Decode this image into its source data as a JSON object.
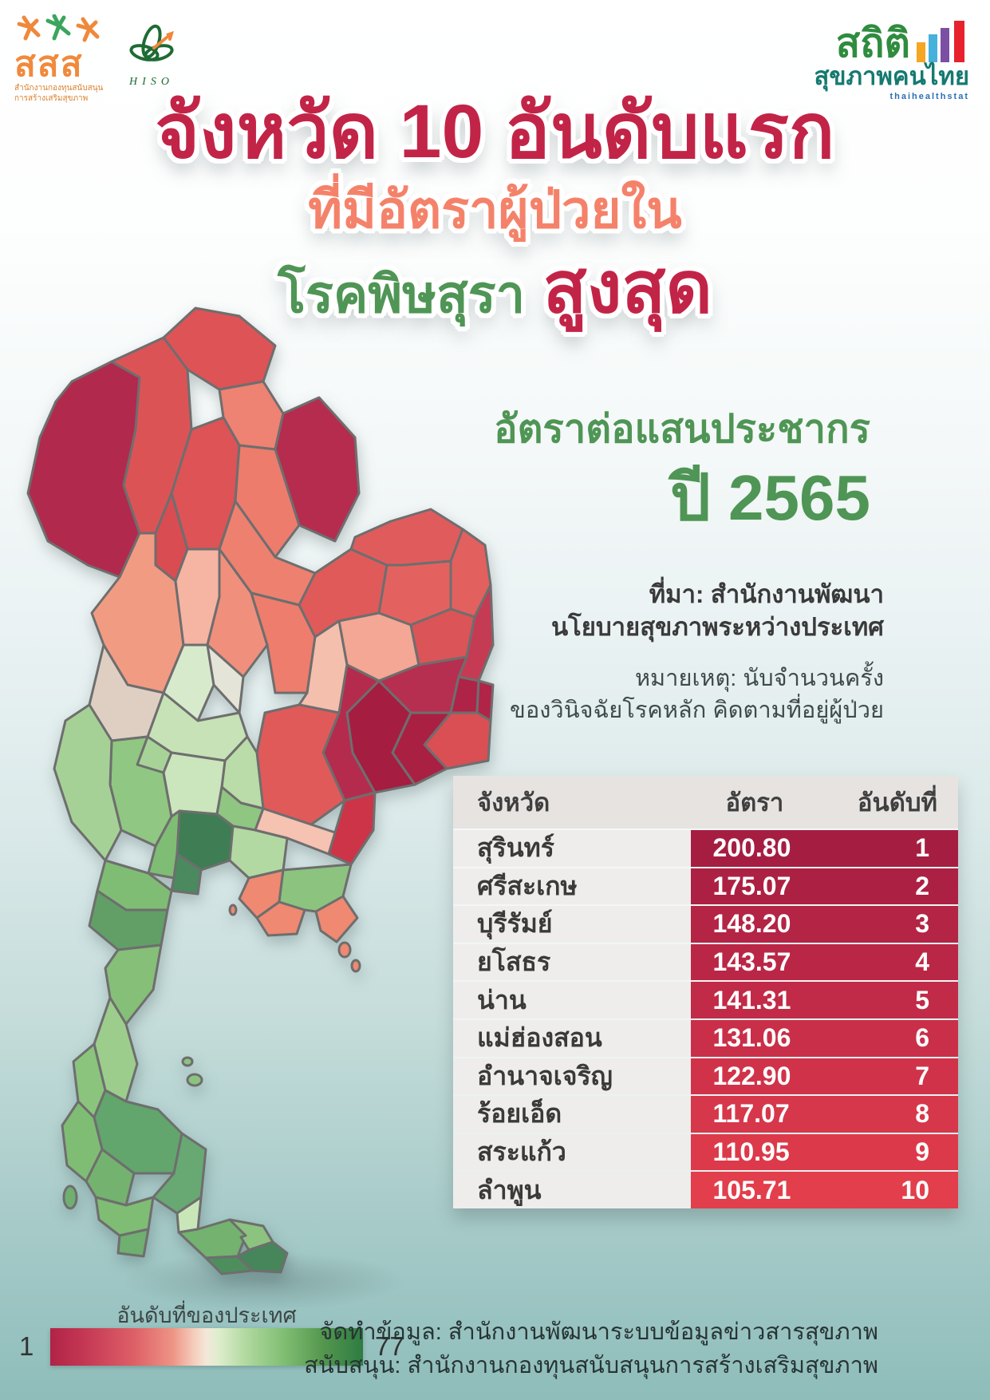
{
  "header": {
    "ssss": {
      "text": "สสส",
      "cap1": "สำนักงานกองทุนสนับสนุน",
      "cap2": "การสร้างเสริมสุขภาพ"
    },
    "hiso": {
      "cap": "HISO"
    },
    "stat": {
      "title": "สถิติ",
      "subtitle": "สุขภาพคนไทย",
      "tagline": "thaihealthstat"
    }
  },
  "title": {
    "line1": "จังหวัด 10 อันดับแรก",
    "line2": "ที่มีอัตราผู้ป่วยใน",
    "line3_green": "โรคพิษสุรา",
    "line3_red": "สูงสุด"
  },
  "panel": {
    "rate_label": "อัตราต่อแสนประชากร",
    "year": "ปี 2565",
    "source_line1": "ที่มา: สำนักงานพัฒนา",
    "source_line2": "นโยบายสุขภาพระหว่างประเทศ",
    "note_line1": "หมายเหตุ: นับจำนวนครั้ง",
    "note_line2": "ของวินิจฉัยโรคหลัก คิดตามที่อยู่ผู้ป่วย"
  },
  "chart_data": {
    "type": "table",
    "title": "จังหวัด 10 อันดับแรกที่มีอัตราผู้ป่วยในโรคพิษสุราสูงสุด ปี 2565",
    "unit": "อัตราต่อแสนประชากร",
    "columns": [
      "จังหวัด",
      "อัตรา",
      "อันดับที่"
    ],
    "rows": [
      {
        "province": "สุรินทร์",
        "rate": "200.80",
        "rank": "1",
        "bg": "#A51E41"
      },
      {
        "province": "ศรีสะเกษ",
        "rate": "175.07",
        "rank": "2",
        "bg": "#AC2143"
      },
      {
        "province": "บุรีรัมย์",
        "rate": "148.20",
        "rank": "3",
        "bg": "#B32445"
      },
      {
        "province": "ยโสธร",
        "rate": "143.57",
        "rank": "4",
        "bg": "#BA2746"
      },
      {
        "province": "น่าน",
        "rate": "141.31",
        "rank": "5",
        "bg": "#C12B47"
      },
      {
        "province": "แม่ฮ่องสอน",
        "rate": "131.06",
        "rank": "6",
        "bg": "#C92F48"
      },
      {
        "province": "อำนาจเจริญ",
        "rate": "122.90",
        "rank": "7",
        "bg": "#D03349"
      },
      {
        "province": "ร้อยเอ็ด",
        "rate": "117.07",
        "rank": "8",
        "bg": "#D6374A"
      },
      {
        "province": "สระแก้ว",
        "rate": "110.95",
        "rank": "9",
        "bg": "#DC3A4A"
      },
      {
        "province": "ลำพูน",
        "rate": "105.71",
        "rank": "10",
        "bg": "#E23E4B"
      }
    ],
    "legend": {
      "label": "อันดับที่ของประเทศ",
      "min": "1",
      "max": "77",
      "gradient": [
        "#B12346 0%",
        "#C63A55 12%",
        "#DE6067 27%",
        "#EE9384 39%",
        "#F5CDBC 46%",
        "#F3E8DA 50%",
        "#DDEDCC 54%",
        "#AFD89D 63%",
        "#7FBD72 75%",
        "#55974F 87%",
        "#2E7C42 100%"
      ]
    }
  },
  "map": {
    "regions": [
      {
        "name": "chiang-rai",
        "color": "#DD5356"
      },
      {
        "name": "mae-hong-son",
        "color": "#B12A4D"
      },
      {
        "name": "chiang-mai",
        "color": "#DC5356"
      },
      {
        "name": "phayao",
        "color": "#EE8273"
      },
      {
        "name": "nan",
        "color": "#B52C4F"
      },
      {
        "name": "lampang",
        "color": "#DD5356"
      },
      {
        "name": "phrae",
        "color": "#ED7C6C"
      },
      {
        "name": "lamphun",
        "color": "#D94C52"
      },
      {
        "name": "uttaradit",
        "color": "#EE8070"
      },
      {
        "name": "tak",
        "color": "#F29B83"
      },
      {
        "name": "sukhothai",
        "color": "#F6B4A3"
      },
      {
        "name": "phitsanulok",
        "color": "#F0907C"
      },
      {
        "name": "phetchabun",
        "color": "#EE7D6D"
      },
      {
        "name": "loei",
        "color": "#E05A5A"
      },
      {
        "name": "nong-khai",
        "color": "#E05C5C"
      },
      {
        "name": "udon-thani",
        "color": "#E36260"
      },
      {
        "name": "sakon-nakhon",
        "color": "#E2605E"
      },
      {
        "name": "khon-kaen",
        "color": "#F3A794"
      },
      {
        "name": "kalasin",
        "color": "#DB5457"
      },
      {
        "name": "mukdahan",
        "color": "#C53B53"
      },
      {
        "name": "chaiyaphum",
        "color": "#F5BFAD"
      },
      {
        "name": "roi-et",
        "color": "#B62F50"
      },
      {
        "name": "yasothon",
        "color": "#AE2347"
      },
      {
        "name": "amnat-charoen",
        "color": "#B02448"
      },
      {
        "name": "ubon-ratchathani",
        "color": "#D94F54"
      },
      {
        "name": "si-sa-ket",
        "color": "#AA2043"
      },
      {
        "name": "surin",
        "color": "#A51D41"
      },
      {
        "name": "buri-ram",
        "color": "#B52B4D"
      },
      {
        "name": "nakhon-ratchasima",
        "color": "#E05A5A"
      },
      {
        "name": "kamphaeng-phet",
        "color": "#D8EACC"
      },
      {
        "name": "phichit",
        "color": "#E4E4D8"
      },
      {
        "name": "nakhon-sawan",
        "color": "#C6E2B6"
      },
      {
        "name": "uthai-thani",
        "color": "#DFCFC3"
      },
      {
        "name": "lop-buri",
        "color": "#B9DCA8"
      },
      {
        "name": "chai-nat",
        "color": "#A7D399"
      },
      {
        "name": "suphan-buri",
        "color": "#90C782"
      },
      {
        "name": "kanchanaburi",
        "color": "#A5D196"
      },
      {
        "name": "ayutthaya",
        "color": "#CBE5BC"
      },
      {
        "name": "saraburi",
        "color": "#8FC681"
      },
      {
        "name": "bangkok-cluster",
        "color": "#3F7E54"
      },
      {
        "name": "nakhon-pathom",
        "color": "#7FBD74"
      },
      {
        "name": "samut-cluster",
        "color": "#4A8A5E"
      },
      {
        "name": "chachoengsao",
        "color": "#B3D9A3"
      },
      {
        "name": "prachin-buri",
        "color": "#F6C2B2"
      },
      {
        "name": "sa-kaeo",
        "color": "#CD3447"
      },
      {
        "name": "chon-buri",
        "color": "#EF8971"
      },
      {
        "name": "rayong",
        "color": "#EF8971"
      },
      {
        "name": "chanthaburi",
        "color": "#8CC37F"
      },
      {
        "name": "trat",
        "color": "#EF8971"
      },
      {
        "name": "ratchaburi",
        "color": "#7FBD74"
      },
      {
        "name": "phetchaburi",
        "color": "#619F66"
      },
      {
        "name": "prachuap-khiri-khan",
        "color": "#85BF78"
      },
      {
        "name": "chumphon",
        "color": "#9CCD8C"
      },
      {
        "name": "ranong",
        "color": "#8AC47D"
      },
      {
        "name": "surat-thani",
        "color": "#62A56D"
      },
      {
        "name": "phang-nga",
        "color": "#7FBD74"
      },
      {
        "name": "nakhon-si-thammarat",
        "color": "#68A873"
      },
      {
        "name": "krabi",
        "color": "#74B26F"
      },
      {
        "name": "phatthalung",
        "color": "#C9E6B8"
      },
      {
        "name": "trang",
        "color": "#7FBD74"
      },
      {
        "name": "satun",
        "color": "#6FAF6F"
      },
      {
        "name": "songkhla",
        "color": "#74B26F"
      },
      {
        "name": "pattani",
        "color": "#8CC37F"
      },
      {
        "name": "yala",
        "color": "#4E8E5D"
      },
      {
        "name": "narathiwat",
        "color": "#47855A"
      },
      {
        "name": "phuket-island",
        "color": "#6FAF6F"
      },
      {
        "name": "koh-phangan",
        "color": "#8CC37F"
      },
      {
        "name": "koh-samui",
        "color": "#8CC37F"
      },
      {
        "name": "pattaya-island",
        "color": "#EF8971"
      },
      {
        "name": "koh-chang",
        "color": "#EF8971"
      },
      {
        "name": "koh-kut",
        "color": "#EF8971"
      }
    ]
  },
  "footer": {
    "line1": "จัดทำข้อมูล: สำนักงานพัฒนาระบบข้อมูลข่าวสารสุขภาพ",
    "line2": "สนับสนุน: สำนักงานกองทุนสนับสนุนการสร้างเสริมสุขภาพ"
  },
  "colors": {
    "title_red": "#C22447",
    "title_salmon": "#F4826A",
    "title_green": "#4F9555",
    "table_header_bg": "#E6E3E1",
    "table_name_bg": "#EFEDEB",
    "background_bottom": "#8EBDBA"
  }
}
